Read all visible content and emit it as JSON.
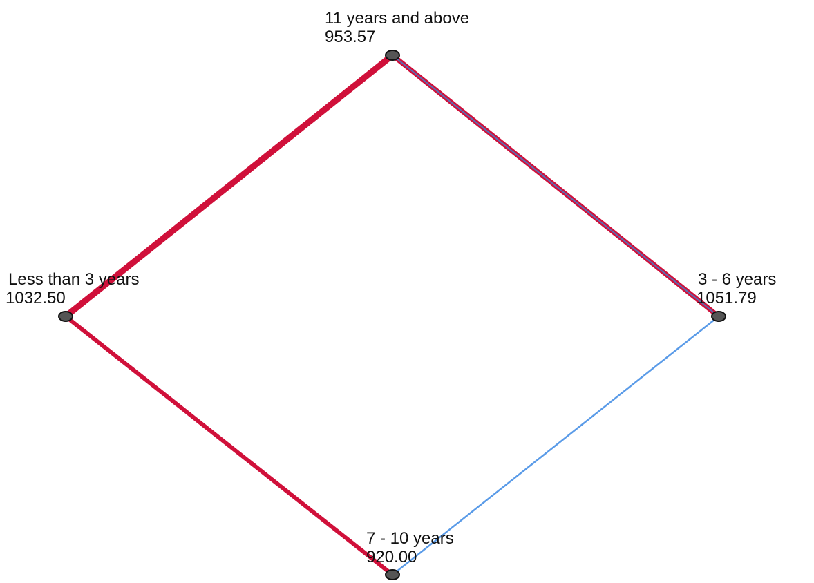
{
  "nodes": [
    {
      "label": "11 years and above",
      "value": "953.57"
    },
    {
      "label": "Less than 3 years",
      "value": "1032.50"
    },
    {
      "label": "3 - 6 years",
      "value": "1051.79"
    },
    {
      "label": "7 - 10 years",
      "value": "920.00"
    }
  ]
}
